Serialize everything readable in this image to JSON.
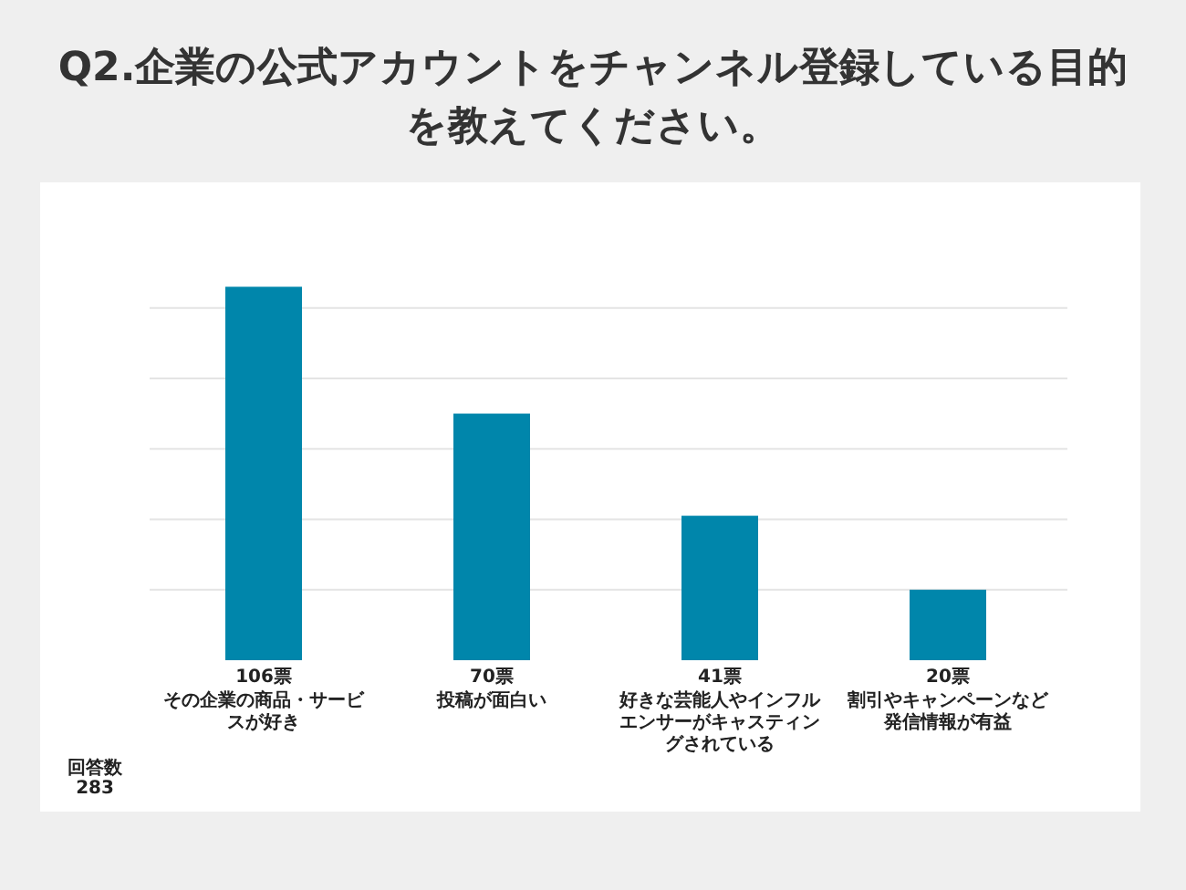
{
  "chart_data": {
    "type": "bar",
    "title": "Q2.企業の公式アカウントをチャンネル登録している目的を教えてください。",
    "categories": [
      "その企業の商品・サービスが好き",
      "投稿が面白い",
      "好きな芸能人やインフルエンサーがキャスティングされている",
      "割引やキャンペーンなど発信情報が有益"
    ],
    "values": [
      106,
      70,
      41,
      20
    ],
    "value_labels": [
      "106票",
      "70票",
      "41票",
      "20票"
    ],
    "color": "#0086ab",
    "yticks": [
      {
        "value": 20,
        "label": null
      },
      {
        "value": 40,
        "label": null
      },
      {
        "value": 60,
        "label": null
      },
      {
        "value": 80,
        "label": null
      },
      {
        "value": 100,
        "label": null
      }
    ],
    "grid": "y",
    "annotations": [
      "回答数 283"
    ]
  }
}
